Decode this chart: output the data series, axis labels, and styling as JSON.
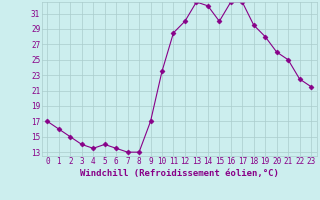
{
  "x": [
    0,
    1,
    2,
    3,
    4,
    5,
    6,
    7,
    8,
    9,
    10,
    11,
    12,
    13,
    14,
    15,
    16,
    17,
    18,
    19,
    20,
    21,
    22,
    23
  ],
  "y": [
    17,
    16,
    15,
    14,
    13.5,
    14,
    13.5,
    13,
    13,
    17,
    23.5,
    28.5,
    30,
    32.5,
    32,
    30,
    32.5,
    32.5,
    29.5,
    28,
    26,
    25,
    22.5,
    21.5
  ],
  "line_color": "#880088",
  "marker": "D",
  "marker_size": 2.5,
  "bg_color": "#cceeee",
  "grid_color": "#aacccc",
  "xlabel": "Windchill (Refroidissement éolien,°C)",
  "xlim_min": -0.5,
  "xlim_max": 23.5,
  "ylim_min": 12.5,
  "ylim_max": 32.5,
  "yticks": [
    13,
    15,
    17,
    19,
    21,
    23,
    25,
    27,
    29,
    31
  ],
  "xticks": [
    0,
    1,
    2,
    3,
    4,
    5,
    6,
    7,
    8,
    9,
    10,
    11,
    12,
    13,
    14,
    15,
    16,
    17,
    18,
    19,
    20,
    21,
    22,
    23
  ],
  "tick_color": "#880088",
  "tick_fontsize": 5.5,
  "xlabel_fontsize": 6.5
}
